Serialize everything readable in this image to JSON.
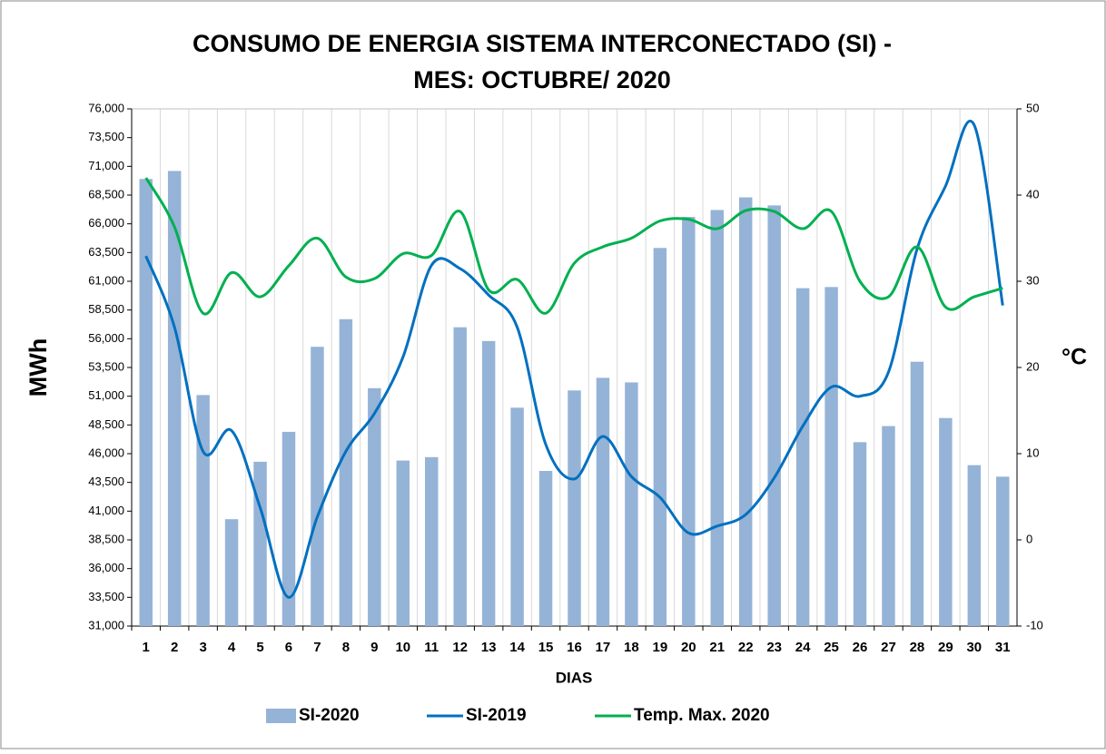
{
  "chart_data": {
    "type": "bar",
    "title": [
      "CONSUMO DE ENERGIA SISTEMA INTERCONECTADO (SI) -",
      "MES: OCTUBRE/ 2020"
    ],
    "x_label": "DIAS",
    "y_label": "MWh",
    "y2_label": "°C",
    "categories": [
      "1",
      "2",
      "3",
      "4",
      "5",
      "6",
      "7",
      "8",
      "9",
      "10",
      "11",
      "12",
      "13",
      "14",
      "15",
      "16",
      "17",
      "18",
      "19",
      "20",
      "21",
      "22",
      "23",
      "24",
      "25",
      "26",
      "27",
      "28",
      "29",
      "30",
      "31"
    ],
    "series": [
      {
        "name": "SI-2020",
        "type": "bar",
        "color": "#95b3d7",
        "values": [
          69900,
          70600,
          51100,
          40300,
          45300,
          47900,
          55300,
          57700,
          51700,
          45400,
          45700,
          57000,
          55800,
          50000,
          44500,
          51500,
          52600,
          52200,
          63900,
          66600,
          67200,
          68300,
          67600,
          60400,
          60500,
          47000,
          48400,
          54000,
          49100,
          45000,
          44000
        ]
      },
      {
        "name": "SI-2019",
        "type": "line",
        "color": "#0070c0",
        "values": [
          63200,
          57000,
          46200,
          48000,
          41300,
          33500,
          40500,
          46200,
          49500,
          54400,
          62400,
          62100,
          59800,
          57000,
          46800,
          43800,
          47500,
          44000,
          42200,
          39100,
          39700,
          40700,
          43900,
          48400,
          51800,
          51000,
          53100,
          63800,
          69300,
          74600,
          58900
        ]
      },
      {
        "name": "Temp. Max. 2020",
        "type": "line",
        "color": "#00b050",
        "axis": "y2",
        "values": [
          42,
          36.3,
          26.3,
          31,
          28.2,
          31.8,
          35,
          30.5,
          30.3,
          33.2,
          33,
          38.1,
          29,
          30.2,
          26.3,
          32.1,
          34,
          35,
          37,
          37.2,
          36.1,
          38.2,
          38.1,
          36.1,
          38.1,
          30,
          28.2,
          34,
          27,
          28.2,
          29.2
        ]
      }
    ],
    "ylim": [
      31000,
      76000
    ],
    "yticks": [
      {
        "value": 31000,
        "label": "31,000"
      },
      {
        "value": 33500,
        "label": "33,500"
      },
      {
        "value": 36000,
        "label": "36,000"
      },
      {
        "value": 38500,
        "label": "38,500"
      },
      {
        "value": 41000,
        "label": "41,000"
      },
      {
        "value": 43500,
        "label": "43,500"
      },
      {
        "value": 46000,
        "label": "46,000"
      },
      {
        "value": 48500,
        "label": "48,500"
      },
      {
        "value": 51000,
        "label": "51,000"
      },
      {
        "value": 53500,
        "label": "53,500"
      },
      {
        "value": 56000,
        "label": "56,000"
      },
      {
        "value": 58500,
        "label": "58,500"
      },
      {
        "value": 61000,
        "label": "61,000"
      },
      {
        "value": 63500,
        "label": "63,500"
      },
      {
        "value": 66000,
        "label": "66,000"
      },
      {
        "value": 68500,
        "label": "68,500"
      },
      {
        "value": 71000,
        "label": "71,000"
      },
      {
        "value": 73500,
        "label": "73,500"
      },
      {
        "value": 76000,
        "label": "76,000"
      }
    ],
    "y2lim": [
      -10,
      50
    ],
    "y2ticks": [
      -10,
      0,
      10,
      20,
      30,
      40,
      50
    ],
    "legend": "bottom"
  }
}
